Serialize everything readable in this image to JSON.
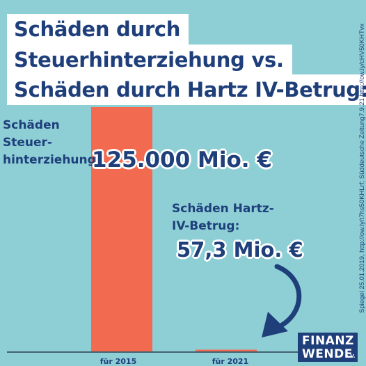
{
  "title": {
    "lines": [
      "Schäden durch",
      "Steuerhinterziehung vs.",
      "Schäden durch Hartz IV-Betrug:"
    ]
  },
  "labels": {
    "tax": [
      "Schäden",
      "Steuer-",
      "hinterziehung:"
    ],
    "tax_value": "125.000 Mio. €",
    "hartz": [
      "Schäden Hartz-",
      "IV-Betrug:"
    ],
    "hartz_value": "57,3 Mio. €"
  },
  "source": "Spiegel 25.01.2019, http://ow.ly/t7hs50KHLrf; Süddeutsche Zeitung7.9.21 http://ow.ly/cHV50KHTvx",
  "logo": {
    "line1": "FINANZ",
    "line2": "WENDE",
    "suffix": "e.V."
  },
  "colors": {
    "background": "#8ecfd6",
    "bar": "#f26a4f",
    "text": "#1e3f7a"
  },
  "chart_data": {
    "type": "bar",
    "categories": [
      "für 2015",
      "für 2021"
    ],
    "values": [
      125000,
      57.3
    ],
    "unit": "Mio. €",
    "ylim": [
      0,
      125000
    ],
    "grid": false
  }
}
